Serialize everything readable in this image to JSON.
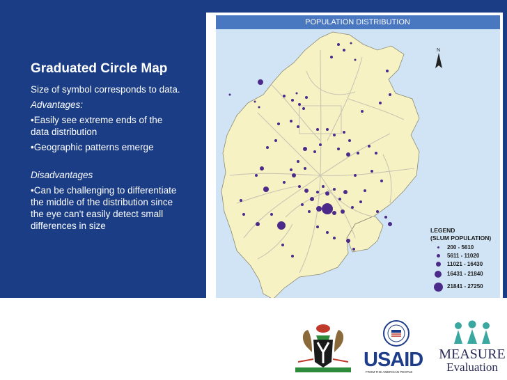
{
  "text_panel": {
    "heading": "Graduated Circle Map",
    "line1": "Size of symbol corresponds to data.",
    "advantages_label": "Advantages:",
    "adv1_line1": "•Easily see extreme ends of the",
    "adv1_line2": "data distribution",
    "adv2": "•Geographic patterns emerge",
    "disadvantages_label": "Disadvantages",
    "dis1_line1": "•Can be challenging to differentiate",
    "dis1_line2": "the middle of the distribution since",
    "dis1_line3": "the eye can't easily detect small",
    "dis1_line4": "differences in size"
  },
  "map": {
    "title": "POPULATION DISTRIBUTION",
    "north_label": "N",
    "legend": {
      "title_line1": "LEGEND",
      "title_line2": "(SLUM POPULATION)",
      "classes": [
        {
          "label": "200 - 5610"
        },
        {
          "label": "5611 - 11020"
        },
        {
          "label": "11021 - 16430"
        },
        {
          "label": "16431 - 21840"
        },
        {
          "label": "21841 - 27250"
        }
      ]
    },
    "colors": {
      "land": "#f7f2c4",
      "water": "#d0e4f6",
      "symbol": "#4b2a8a",
      "road": "#c9c5b2"
    }
  },
  "logos": {
    "usaid_word": "USAID",
    "usaid_sub": "FROM THE AMERICAN PEOPLE",
    "measure_word": "MEASURE",
    "evaluation_word": "Evaluation"
  }
}
